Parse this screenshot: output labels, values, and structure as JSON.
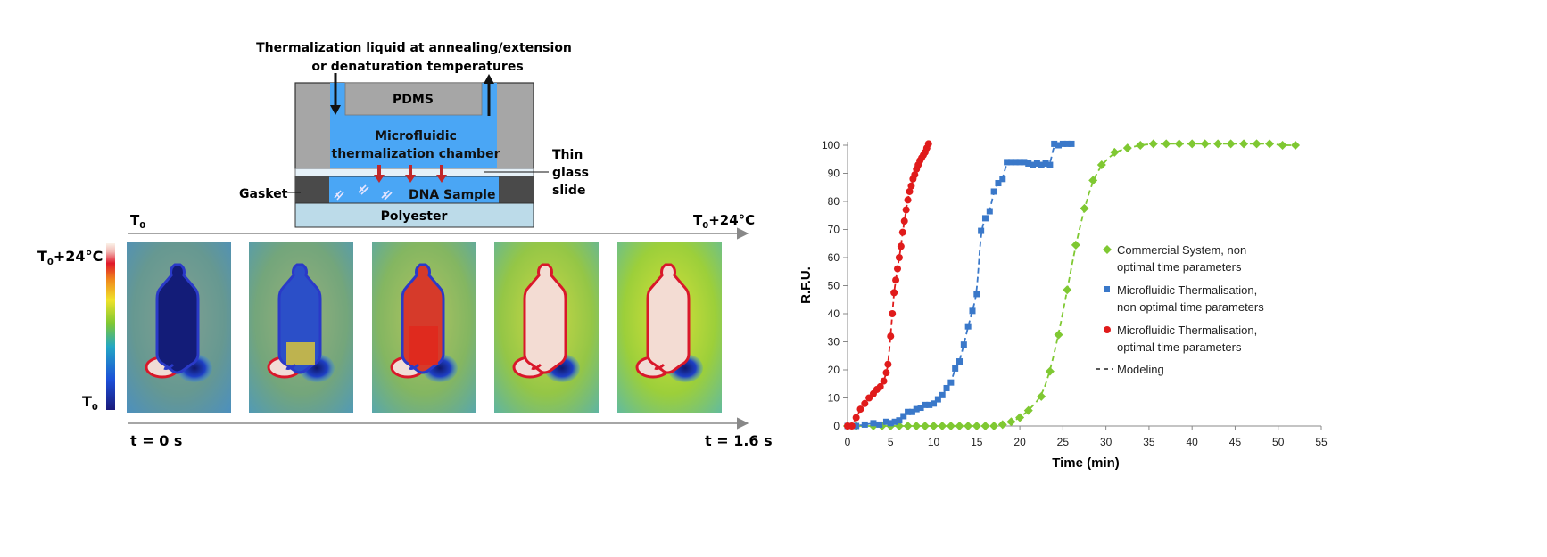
{
  "figure": {
    "schematic": {
      "title_line1": "Thermalization liquid at annealing/extension",
      "title_line2": "or denaturation temperatures",
      "pdms": "PDMS",
      "chamber_line1": "Microfluidic",
      "chamber_line2": "thermalization chamber",
      "dna": "DNA Sample",
      "polyester": "Polyester",
      "gasket": "Gasket",
      "slide_line1": "Thin",
      "slide_line2": "glass",
      "slide_line3": "slide"
    },
    "thermal": {
      "arrow_left_main": "T",
      "arrow_left_sub": "0",
      "arrow_right_main": "T",
      "arrow_right_sub": "0",
      "arrow_right_suffix": "+24°C",
      "scale_top_main": "T",
      "scale_top_sub": "0",
      "scale_top_suffix": "+24°C",
      "scale_bottom_main": "T",
      "scale_bottom_sub": "0",
      "time_start": "t = 0 s",
      "time_end": "t = 1.6 s",
      "frame_fill_levels": [
        0.0,
        0.25,
        0.55,
        0.85,
        1.0
      ]
    },
    "colors": {
      "green_series": "#7fc832",
      "blue_series": "#3a78c9",
      "red_series": "#e01b1b",
      "chamber_blue": "#4aa6f5",
      "pdms_gray": "#a6a6a6",
      "polyester_blue": "#bcdbe9"
    }
  },
  "chart_data": {
    "type": "scatter",
    "xlabel": "Time (min)",
    "ylabel": "R.F.U.",
    "xlim": [
      0,
      55
    ],
    "ylim": [
      0,
      100
    ],
    "xticks": [
      "0",
      "5",
      "10",
      "15",
      "20",
      "25",
      "30",
      "35",
      "40",
      "45",
      "50",
      "55"
    ],
    "yticks": [
      "0",
      "10",
      "20",
      "30",
      "40",
      "50",
      "60",
      "70",
      "80",
      "90",
      "100"
    ],
    "grid": false,
    "legend_position": "right",
    "series": [
      {
        "name_line1": "Commercial System, non",
        "name_line2": "optimal time parameters",
        "color": "#7fc832",
        "marker": "diamond",
        "x": [
          0,
          1,
          3,
          4,
          5,
          6,
          7,
          8,
          9,
          10,
          11,
          12,
          13,
          14,
          15,
          16,
          17,
          18,
          19,
          20,
          21,
          22.5,
          23.5,
          24.5,
          25.5,
          26.5,
          27.5,
          28.5,
          29.5,
          31,
          32.5,
          34,
          35.5,
          37,
          38.5,
          40,
          41.5,
          43,
          44.5,
          46,
          47.5,
          49,
          50.5,
          52
        ],
        "y": [
          0,
          0,
          0,
          0,
          0,
          0,
          0,
          0,
          0,
          0,
          0,
          0,
          0,
          0,
          0,
          0,
          0,
          0.5,
          1.5,
          3,
          5.5,
          10.5,
          19.5,
          32.5,
          48.5,
          64.5,
          77.5,
          87.5,
          93,
          97.5,
          99,
          100,
          100.5,
          100.5,
          100.5,
          100.5,
          100.5,
          100.5,
          100.5,
          100.5,
          100.5,
          100.5,
          100,
          100
        ]
      },
      {
        "name_line1": "Microfluidic Thermalisation,",
        "name_line2": "non optimal time parameters",
        "color": "#3a78c9",
        "marker": "square",
        "x": [
          0,
          1,
          2,
          3,
          3.7,
          4.5,
          5,
          5.5,
          6,
          6.5,
          7,
          7.5,
          8,
          8.5,
          9,
          9.5,
          10,
          10.5,
          11,
          11.5,
          12,
          12.5,
          13,
          13.5,
          14,
          14.5,
          15,
          15.5,
          16,
          16.5,
          17,
          17.5,
          18,
          18.5,
          19,
          19.5,
          20,
          20.5,
          21,
          21.5,
          22,
          22.5,
          23,
          23.5,
          24,
          24.5,
          25,
          25.5,
          26
        ],
        "y": [
          0,
          0,
          0.5,
          1,
          0.5,
          1.5,
          1,
          1.5,
          2,
          3.5,
          5,
          5,
          6,
          6.5,
          7.5,
          7.5,
          8,
          9.5,
          11,
          13.5,
          15.5,
          20.5,
          23,
          29,
          35.5,
          41,
          47,
          69.5,
          74,
          76.5,
          83.5,
          86.5,
          88,
          94,
          94,
          94,
          94,
          94,
          93.5,
          93,
          93.5,
          93,
          93.5,
          93,
          100.5,
          100,
          100.5,
          100.5,
          100.5
        ]
      },
      {
        "name_line1": "Microfluidic Thermalisation,",
        "name_line2": "optimal time parameters",
        "color": "#e01b1b",
        "marker": "circle",
        "x": [
          0,
          0.5,
          1,
          1.5,
          2,
          2.5,
          3,
          3.4,
          3.8,
          4.2,
          4.5,
          4.7,
          5,
          5.2,
          5.4,
          5.6,
          5.8,
          6,
          6.2,
          6.4,
          6.6,
          6.8,
          7,
          7.2,
          7.4,
          7.6,
          7.8,
          8,
          8.2,
          8.4,
          8.6,
          8.8,
          9,
          9.2,
          9.4
        ],
        "y": [
          0,
          0,
          3,
          6,
          8,
          10,
          11.5,
          13,
          14,
          16,
          19,
          22,
          32,
          40,
          47.5,
          52,
          56,
          60,
          64,
          69,
          73,
          77,
          80.5,
          83.5,
          85.5,
          88,
          89.5,
          91.5,
          93,
          94.5,
          95.5,
          96.5,
          97.5,
          99,
          100.5
        ]
      }
    ],
    "modeling_label": "Modeling"
  }
}
